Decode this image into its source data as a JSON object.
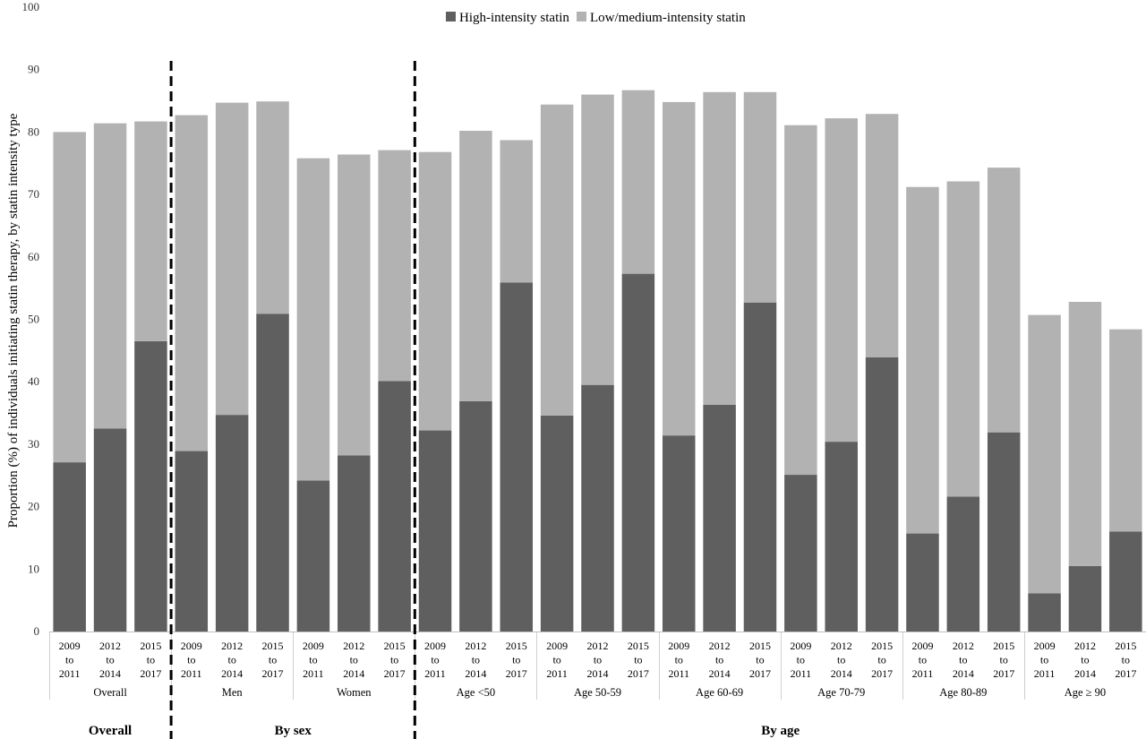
{
  "chart_data": {
    "type": "bar",
    "stacked": true,
    "ylabel": "Proportion (%) of individuals initiating statin therapy, by statin intensity type",
    "ylim": [
      0,
      100
    ],
    "yticks": [
      0,
      10,
      20,
      30,
      40,
      50,
      60,
      70,
      80,
      90,
      100
    ],
    "grid": false,
    "legend_position": "top-center",
    "periods": [
      "2009 to 2011",
      "2012 to 2014",
      "2015 to 2017"
    ],
    "period_lines": [
      [
        "2009",
        "to",
        "2011"
      ],
      [
        "2012",
        "to",
        "2014"
      ],
      [
        "2015",
        "to",
        "2017"
      ]
    ],
    "groups": [
      "Overall",
      "Men",
      "Women",
      "Age <50",
      "Age 50-59",
      "Age 60-69",
      "Age 70-79",
      "Age 80-89",
      "Age ≥ 90"
    ],
    "sections": [
      {
        "label": "Overall",
        "groups": [
          "Overall"
        ]
      },
      {
        "label": "By sex",
        "groups": [
          "Men",
          "Women"
        ]
      },
      {
        "label": "By age",
        "groups": [
          "Age <50",
          "Age 50-59",
          "Age 60-69",
          "Age 70-79",
          "Age 80-89",
          "Age ≥ 90"
        ]
      }
    ],
    "series": [
      {
        "name": "High-intensity statin",
        "color": "#5f5f5f",
        "values": [
          27.1,
          32.5,
          46.5,
          28.9,
          34.7,
          50.9,
          24.2,
          28.2,
          40.1,
          32.2,
          36.9,
          55.9,
          34.6,
          39.5,
          57.3,
          31.4,
          36.3,
          52.7,
          25.1,
          30.4,
          43.9,
          15.7,
          21.6,
          31.9,
          6.1,
          10.5,
          16.0
        ]
      },
      {
        "name": "Low/medium-intensity statin",
        "color": "#b2b2b2",
        "values": [
          52.9,
          48.9,
          35.2,
          53.8,
          50.0,
          34.0,
          51.6,
          48.2,
          37.0,
          44.6,
          43.3,
          22.8,
          49.8,
          46.5,
          29.4,
          53.4,
          50.1,
          33.7,
          56.0,
          51.8,
          39.0,
          55.5,
          50.5,
          42.4,
          44.6,
          42.3,
          32.4
        ]
      }
    ]
  }
}
